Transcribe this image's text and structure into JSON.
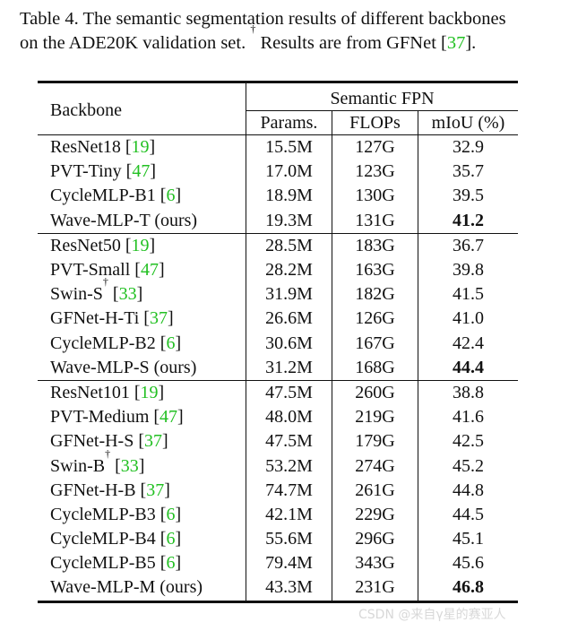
{
  "caption": {
    "line1": "Table 4. The semantic segmentation results of different backbones",
    "line2_pre": "on the ADE20K validation set.",
    "dagger": "†",
    "line2_mid": " Results are from GFNet [",
    "line2_ref": "37",
    "line2_end": "]."
  },
  "header": {
    "backbone": "Backbone",
    "group": "Semantic FPN",
    "params": "Params.",
    "flops": "FLOPs",
    "miou": "mIoU (%)"
  },
  "groups": [
    [
      {
        "name": "ResNet18 [",
        "ref": "19",
        "post": "]",
        "params": "15.5M",
        "flops": "127G",
        "miou": "32.9"
      },
      {
        "name": "PVT-Tiny [",
        "ref": "47",
        "post": "]",
        "params": "17.0M",
        "flops": "123G",
        "miou": "35.7"
      },
      {
        "name": "CycleMLP-B1 [",
        "ref": "6",
        "post": "]",
        "params": "18.9M",
        "flops": "130G",
        "miou": "39.5"
      },
      {
        "name": "Wave-MLP-T (ours)",
        "ref": "",
        "post": "",
        "params": "19.3M",
        "flops": "131G",
        "miou": "41.2",
        "bold": true
      }
    ],
    [
      {
        "name": "ResNet50 [",
        "ref": "19",
        "post": "]",
        "params": "28.5M",
        "flops": "183G",
        "miou": "36.7"
      },
      {
        "name": "PVT-Small [",
        "ref": "47",
        "post": "]",
        "params": "28.2M",
        "flops": "163G",
        "miou": "39.8"
      },
      {
        "name": "Swin-S",
        "dagger": "†",
        "mid": " [",
        "ref": "33",
        "post": "]",
        "params": "31.9M",
        "flops": "182G",
        "miou": "41.5"
      },
      {
        "name": "GFNet-H-Ti [",
        "ref": "37",
        "post": "]",
        "params": "26.6M",
        "flops": "126G",
        "miou": "41.0"
      },
      {
        "name": "CycleMLP-B2 [",
        "ref": "6",
        "post": "]",
        "params": "30.6M",
        "flops": "167G",
        "miou": "42.4"
      },
      {
        "name": "Wave-MLP-S (ours)",
        "ref": "",
        "post": "",
        "params": "31.2M",
        "flops": "168G",
        "miou": "44.4",
        "bold": true
      }
    ],
    [
      {
        "name": "ResNet101 [",
        "ref": "19",
        "post": "]",
        "params": "47.5M",
        "flops": "260G",
        "miou": "38.8"
      },
      {
        "name": "PVT-Medium [",
        "ref": "47",
        "post": "]",
        "params": "48.0M",
        "flops": "219G",
        "miou": "41.6"
      },
      {
        "name": "GFNet-H-S [",
        "ref": "37",
        "post": "]",
        "params": "47.5M",
        "flops": "179G",
        "miou": "42.5"
      },
      {
        "name": "Swin-B",
        "dagger": "†",
        "mid": " [",
        "ref": "33",
        "post": "]",
        "params": "53.2M",
        "flops": "274G",
        "miou": "45.2"
      },
      {
        "name": "GFNet-H-B [",
        "ref": "37",
        "post": "]",
        "params": "74.7M",
        "flops": "261G",
        "miou": "44.8"
      },
      {
        "name": "CycleMLP-B3 [",
        "ref": "6",
        "post": "]",
        "params": "42.1M",
        "flops": "229G",
        "miou": "44.5"
      },
      {
        "name": "CycleMLP-B4 [",
        "ref": "6",
        "post": "]",
        "params": "55.6M",
        "flops": "296G",
        "miou": "45.1"
      },
      {
        "name": "CycleMLP-B5 [",
        "ref": "6",
        "post": "]",
        "params": "79.4M",
        "flops": "343G",
        "miou": "45.6"
      },
      {
        "name": "Wave-MLP-M (ours)",
        "ref": "",
        "post": "",
        "params": "43.3M",
        "flops": "231G",
        "miou": "46.8",
        "bold": true
      }
    ]
  ],
  "watermark": "CSDN @来自γ星的赛亚人"
}
